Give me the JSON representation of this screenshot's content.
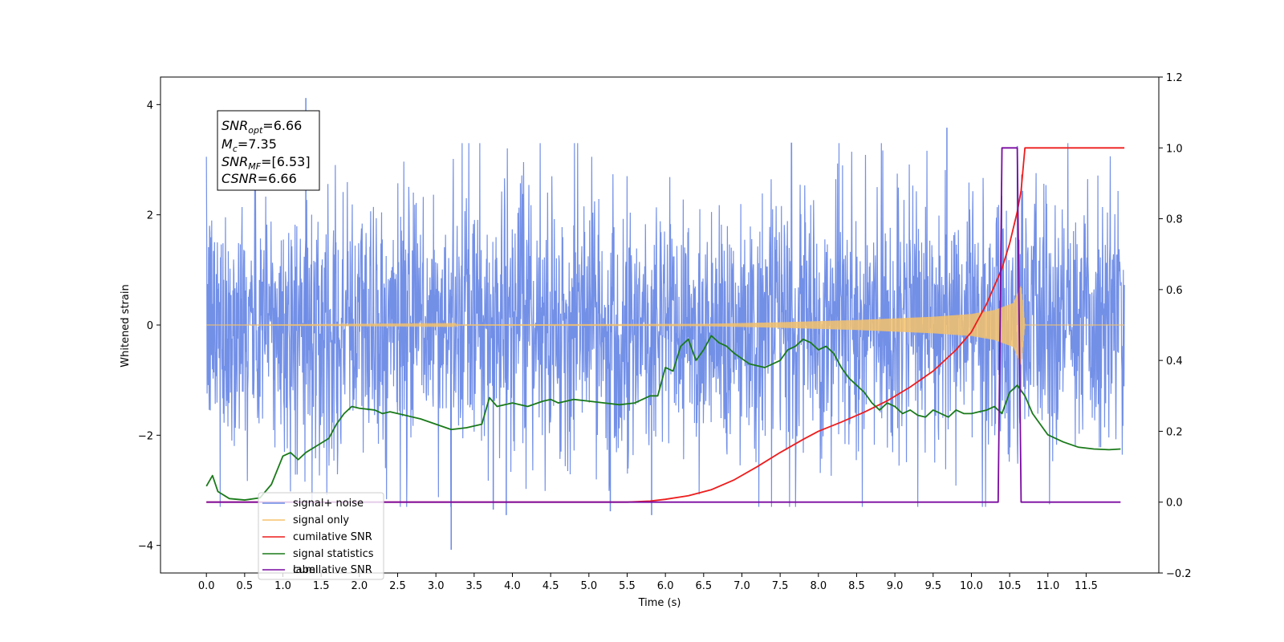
{
  "chart_data": {
    "type": "line",
    "title": "",
    "xlabel": "Time (s)",
    "ylabel": "Whitened strain",
    "y2label": "",
    "xlim": [
      -0.6,
      12.45
    ],
    "ylim": [
      -4.5,
      4.5
    ],
    "y2lim": [
      -0.2,
      1.2
    ],
    "grid": false,
    "legend_position": "lower-left",
    "x_ticks": [
      "0.0",
      "0.5",
      "1.0",
      "1.5",
      "2.0",
      "2.5",
      "3.0",
      "3.5",
      "4.0",
      "4.5",
      "5.0",
      "5.5",
      "6.0",
      "6.5",
      "7.0",
      "7.5",
      "8.0",
      "8.5",
      "9.0",
      "9.5",
      "10.0",
      "10.5",
      "11.0",
      "11.5"
    ],
    "y_ticks": [
      "4",
      "2",
      "0",
      "−2",
      "−4"
    ],
    "y2_ticks": [
      "1.2",
      "1.0",
      "0.8",
      "0.6",
      "0.4",
      "0.2",
      "0.0",
      "−0.2"
    ],
    "annotation": {
      "lines": [
        {
          "main": "SNR",
          "sub": "opt",
          "value": "=6.66"
        },
        {
          "main": "M",
          "sub": "c",
          "value": "=7.35"
        },
        {
          "main": "SNR",
          "sub": "MF",
          "value": "=[6.53]"
        },
        {
          "main": "CSNR",
          "sub": "",
          "value": "=6.66"
        }
      ]
    },
    "legend": [
      {
        "label": "signal+ noise",
        "color": "#6b8ae6"
      },
      {
        "label": "signal only",
        "color": "#f5c26b"
      },
      {
        "label": "cumilative SNR",
        "color": "#ee1c1c"
      },
      {
        "label": "signal statistics",
        "color": "#1a7a1a"
      },
      {
        "label": "label",
        "color": "#7a0aa0"
      }
    ],
    "legend_hidden_text": "cumilative SNR",
    "series": [
      {
        "name": "signal+ noise",
        "axis": "left",
        "color": "#6b8ae6",
        "kind": "noise",
        "x_range": [
          0.0,
          12.0
        ],
        "envelope_typical": 2.0,
        "peaks": [
          {
            "x": 1.3,
            "y": 4.12
          },
          {
            "x": 9.68,
            "y": 3.58
          },
          {
            "x": 3.2,
            "y": -4.08
          },
          {
            "x": 3.92,
            "y": -3.45
          },
          {
            "x": 5.28,
            "y": -3.38
          },
          {
            "x": 5.82,
            "y": -3.45
          },
          {
            "x": 3.75,
            "y": -3.35
          },
          {
            "x": 10.6,
            "y": 3.25
          }
        ]
      },
      {
        "name": "signal only",
        "axis": "left",
        "color": "#f5c26b",
        "kind": "chirp",
        "x_range": [
          0.0,
          12.0
        ],
        "merger_time": 10.7,
        "amplitude_envelope": [
          [
            0.0,
            0.0
          ],
          [
            6.5,
            0.02
          ],
          [
            7.5,
            0.05
          ],
          [
            8.5,
            0.09
          ],
          [
            9.5,
            0.15
          ],
          [
            10.0,
            0.2
          ],
          [
            10.3,
            0.27
          ],
          [
            10.55,
            0.4
          ],
          [
            10.65,
            0.72
          ],
          [
            10.7,
            0.0
          ],
          [
            12.0,
            0.0
          ]
        ]
      },
      {
        "name": "cumilative SNR",
        "axis": "right",
        "color": "#ee1c1c",
        "x": [
          0.0,
          5.5,
          5.8,
          6.0,
          6.3,
          6.6,
          6.9,
          7.2,
          7.5,
          7.8,
          8.0,
          8.3,
          8.6,
          8.9,
          9.2,
          9.5,
          9.8,
          10.0,
          10.2,
          10.4,
          10.5,
          10.6,
          10.65,
          10.7,
          12.0
        ],
        "y": [
          0.0,
          0.0,
          0.003,
          0.008,
          0.018,
          0.035,
          0.063,
          0.1,
          0.14,
          0.177,
          0.2,
          0.226,
          0.254,
          0.286,
          0.325,
          0.37,
          0.43,
          0.48,
          0.56,
          0.66,
          0.73,
          0.82,
          0.88,
          1.0,
          1.0
        ]
      },
      {
        "name": "signal statistics",
        "axis": "right",
        "color": "#1a7a1a",
        "x": [
          0.0,
          0.08,
          0.15,
          0.3,
          0.5,
          0.7,
          0.85,
          1.0,
          1.1,
          1.2,
          1.3,
          1.45,
          1.6,
          1.7,
          1.8,
          1.9,
          2.0,
          2.2,
          2.3,
          2.4,
          2.6,
          2.8,
          3.0,
          3.2,
          3.4,
          3.6,
          3.7,
          3.8,
          4.0,
          4.2,
          4.4,
          4.5,
          4.6,
          4.8,
          5.0,
          5.2,
          5.4,
          5.6,
          5.8,
          5.9,
          6.0,
          6.1,
          6.2,
          6.3,
          6.4,
          6.5,
          6.6,
          6.7,
          6.8,
          6.9,
          7.0,
          7.1,
          7.2,
          7.3,
          7.4,
          7.5,
          7.6,
          7.7,
          7.8,
          7.9,
          8.0,
          8.1,
          8.2,
          8.3,
          8.4,
          8.5,
          8.6,
          8.7,
          8.8,
          8.9,
          9.0,
          9.1,
          9.2,
          9.3,
          9.4,
          9.5,
          9.6,
          9.7,
          9.8,
          9.9,
          10.0,
          10.1,
          10.2,
          10.3,
          10.4,
          10.5,
          10.6,
          10.7,
          10.8,
          10.9,
          11.0,
          11.2,
          11.4,
          11.6,
          11.8,
          11.95
        ],
        "y": [
          0.045,
          0.075,
          0.03,
          0.01,
          0.006,
          0.012,
          0.05,
          0.13,
          0.14,
          0.12,
          0.14,
          0.16,
          0.18,
          0.22,
          0.25,
          0.27,
          0.265,
          0.26,
          0.25,
          0.255,
          0.245,
          0.235,
          0.22,
          0.205,
          0.21,
          0.22,
          0.295,
          0.27,
          0.28,
          0.27,
          0.285,
          0.29,
          0.28,
          0.29,
          0.285,
          0.28,
          0.275,
          0.28,
          0.3,
          0.3,
          0.38,
          0.37,
          0.44,
          0.46,
          0.4,
          0.43,
          0.47,
          0.45,
          0.44,
          0.42,
          0.405,
          0.39,
          0.385,
          0.38,
          0.39,
          0.4,
          0.43,
          0.44,
          0.46,
          0.45,
          0.43,
          0.44,
          0.42,
          0.38,
          0.35,
          0.33,
          0.31,
          0.28,
          0.26,
          0.28,
          0.27,
          0.25,
          0.26,
          0.245,
          0.24,
          0.26,
          0.25,
          0.24,
          0.26,
          0.25,
          0.25,
          0.255,
          0.26,
          0.27,
          0.25,
          0.31,
          0.33,
          0.3,
          0.25,
          0.22,
          0.19,
          0.17,
          0.155,
          0.15,
          0.148,
          0.15
        ]
      },
      {
        "name": "label",
        "axis": "right",
        "color": "#7a0aa0",
        "x": [
          0.0,
          10.35,
          10.4,
          10.6,
          10.65,
          11.95
        ],
        "y": [
          0.0,
          0.0,
          1.0,
          1.0,
          0.0,
          0.0
        ]
      }
    ]
  }
}
